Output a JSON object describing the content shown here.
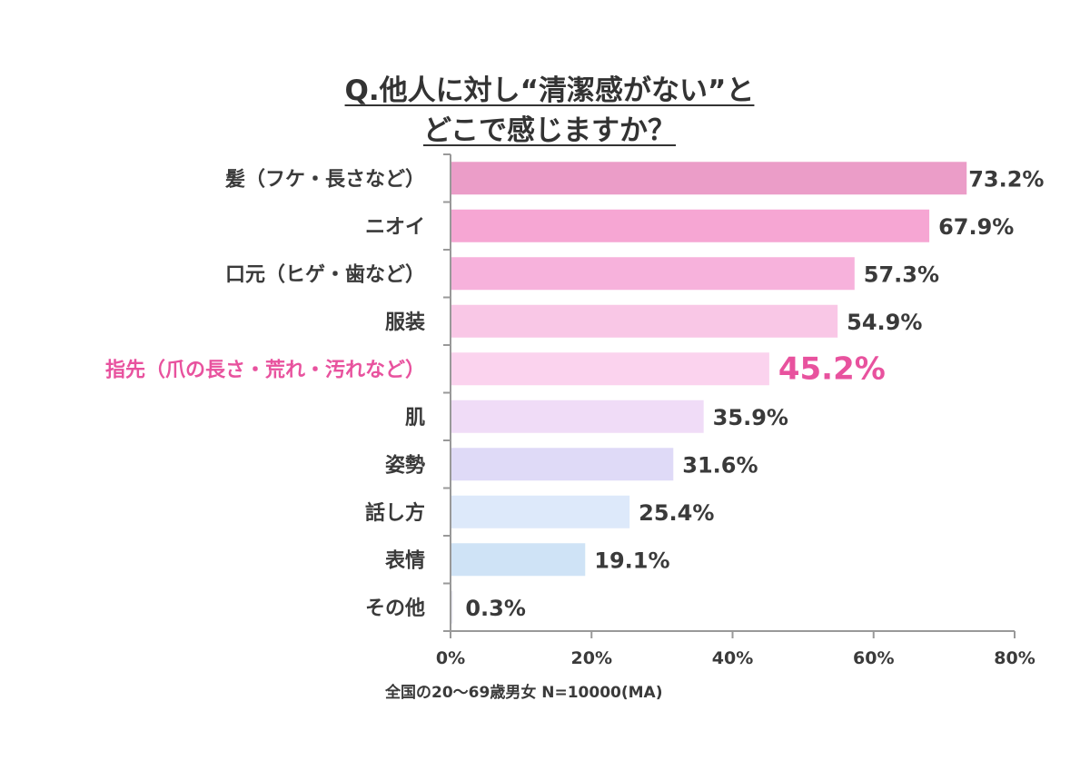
{
  "chart_data": {
    "type": "bar",
    "orientation": "horizontal",
    "title_lines": [
      "Q.他人に対し“清潔感がない”と",
      "どこで感じますか？"
    ],
    "categories": [
      "髪（フケ・長さなど）",
      "ニオイ",
      "口元（ヒゲ・歯など）",
      "服装",
      "指先（爪の長さ・荒れ・汚れなど）",
      "肌",
      "姿勢",
      "話し方",
      "表情",
      "その他"
    ],
    "values": [
      73.2,
      67.9,
      57.3,
      54.9,
      45.2,
      35.9,
      31.6,
      25.4,
      19.1,
      0.3
    ],
    "value_labels": [
      "73.2%",
      "67.9%",
      "57.3%",
      "54.9%",
      "45.2%",
      "35.9%",
      "31.6%",
      "25.4%",
      "19.1%",
      "0.3%"
    ],
    "highlight_index": 4,
    "highlight_color": "#e8529e",
    "bar_colors": [
      "#eb9dc8",
      "#f6a6d3",
      "#f7b2dc",
      "#f9c7e6",
      "#fbd3ee",
      "#f0dcf7",
      "#dfdaf7",
      "#dde9fa",
      "#cfe3f6",
      "#e8e8f2"
    ],
    "xlim": [
      0,
      80
    ],
    "xticks": [
      "0%",
      "20%",
      "40%",
      "60%",
      "80%"
    ],
    "xtick_values": [
      0,
      20,
      40,
      60,
      80
    ],
    "grid": false,
    "note": "全国の20〜69歳男女 N=10000(MA)"
  }
}
